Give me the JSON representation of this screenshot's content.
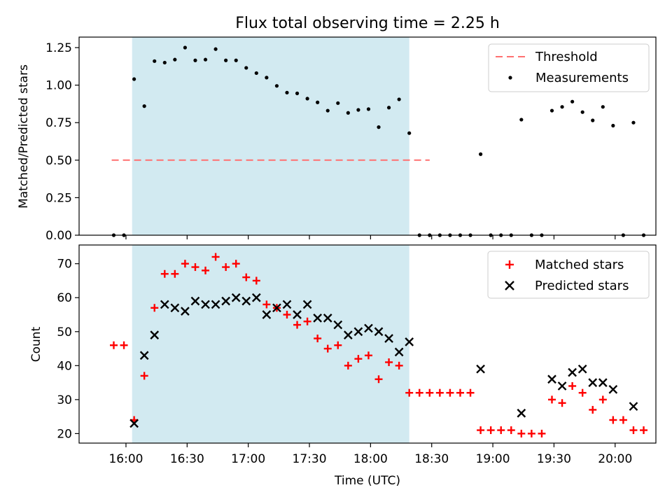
{
  "title": "Flux total observing time = 2.25 h",
  "chart_data": [
    {
      "type": "scatter",
      "panel": "top",
      "ylabel": "Matched/Predicted stars",
      "ylim": [
        0,
        1.32
      ],
      "yticks": [
        0,
        0.25,
        0.5,
        0.75,
        1.0,
        1.25
      ],
      "ytick_labels": [
        "0.00",
        "0.25",
        "0.50",
        "0.75",
        "1.00",
        "1.25"
      ],
      "highlight_span_minutes": [
        963,
        1099
      ],
      "threshold": {
        "label": "Threshold",
        "value": 0.5,
        "x_range_minutes": [
          953,
          1109
        ]
      },
      "legend": [
        "Threshold",
        "Measurements"
      ],
      "legend_position": "top-right",
      "series": [
        {
          "name": "Measurements",
          "points": [
            [
              954,
              0
            ],
            [
              959,
              0
            ],
            [
              964,
              1.04
            ],
            [
              969,
              0.86
            ],
            [
              974,
              1.16
            ],
            [
              979,
              1.15
            ],
            [
              984,
              1.17
            ],
            [
              989,
              1.25
            ],
            [
              994,
              1.165
            ],
            [
              999,
              1.17
            ],
            [
              1004,
              1.24
            ],
            [
              1009,
              1.165
            ],
            [
              1014,
              1.165
            ],
            [
              1019,
              1.115
            ],
            [
              1024,
              1.08
            ],
            [
              1029,
              1.05
            ],
            [
              1034,
              0.995
            ],
            [
              1039,
              0.95
            ],
            [
              1044,
              0.945
            ],
            [
              1049,
              0.91
            ],
            [
              1054,
              0.885
            ],
            [
              1059,
              0.83
            ],
            [
              1064,
              0.88
            ],
            [
              1069,
              0.815
            ],
            [
              1074,
              0.835
            ],
            [
              1079,
              0.84
            ],
            [
              1084,
              0.72
            ],
            [
              1089,
              0.85
            ],
            [
              1094,
              0.905
            ],
            [
              1099,
              0.68
            ],
            [
              1104,
              0
            ],
            [
              1109,
              0
            ],
            [
              1114,
              0
            ],
            [
              1119,
              0
            ],
            [
              1124,
              0
            ],
            [
              1129,
              0
            ],
            [
              1134,
              0.54
            ],
            [
              1139,
              0
            ],
            [
              1144,
              0
            ],
            [
              1149,
              0
            ],
            [
              1154,
              0.77
            ],
            [
              1159,
              0
            ],
            [
              1164,
              0
            ],
            [
              1169,
              0.83
            ],
            [
              1174,
              0.855
            ],
            [
              1179,
              0.89
            ],
            [
              1184,
              0.82
            ],
            [
              1189,
              0.765
            ],
            [
              1194,
              0.855
            ],
            [
              1199,
              0.73
            ],
            [
              1204,
              0
            ],
            [
              1209,
              0.75
            ],
            [
              1214,
              0
            ]
          ]
        }
      ]
    },
    {
      "type": "scatter",
      "panel": "bottom",
      "title": "",
      "xlabel": "Time (UTC)",
      "ylabel": "Count",
      "xlim_minutes": [
        937,
        1220
      ],
      "ylim": [
        17.2,
        75.5
      ],
      "xticks_minutes": [
        960,
        990,
        1020,
        1050,
        1080,
        1110,
        1140,
        1170,
        1200
      ],
      "xtick_labels": [
        "16:00",
        "16:30",
        "17:00",
        "17:30",
        "18:00",
        "18:30",
        "19:00",
        "19:30",
        "20:00"
      ],
      "yticks": [
        20,
        30,
        40,
        50,
        60,
        70
      ],
      "ytick_labels": [
        "20",
        "30",
        "40",
        "50",
        "60",
        "70"
      ],
      "highlight_span_minutes": [
        963,
        1099
      ],
      "legend": [
        "Matched stars",
        "Predicted stars"
      ],
      "legend_position": "top-right",
      "series": [
        {
          "name": "Matched stars",
          "color": "#ff0000",
          "marker": "plus",
          "points": [
            [
              954,
              46
            ],
            [
              959,
              46
            ],
            [
              964,
              24
            ],
            [
              969,
              37
            ],
            [
              974,
              57
            ],
            [
              979,
              67
            ],
            [
              984,
              67
            ],
            [
              989,
              70
            ],
            [
              994,
              69
            ],
            [
              999,
              68
            ],
            [
              1004,
              72
            ],
            [
              1009,
              69
            ],
            [
              1014,
              70
            ],
            [
              1019,
              66
            ],
            [
              1024,
              65
            ],
            [
              1029,
              58
            ],
            [
              1034,
              57
            ],
            [
              1039,
              55
            ],
            [
              1044,
              52
            ],
            [
              1049,
              53
            ],
            [
              1054,
              48
            ],
            [
              1059,
              45
            ],
            [
              1064,
              46
            ],
            [
              1069,
              40
            ],
            [
              1074,
              42
            ],
            [
              1079,
              43
            ],
            [
              1084,
              36
            ],
            [
              1089,
              41
            ],
            [
              1094,
              40
            ],
            [
              1099,
              32
            ],
            [
              1104,
              32
            ],
            [
              1109,
              32
            ],
            [
              1114,
              32
            ],
            [
              1119,
              32
            ],
            [
              1124,
              32
            ],
            [
              1129,
              32
            ],
            [
              1134,
              21
            ],
            [
              1139,
              21
            ],
            [
              1144,
              21
            ],
            [
              1149,
              21
            ],
            [
              1154,
              20
            ],
            [
              1159,
              20
            ],
            [
              1164,
              20
            ],
            [
              1169,
              30
            ],
            [
              1174,
              29
            ],
            [
              1179,
              34
            ],
            [
              1184,
              32
            ],
            [
              1189,
              27
            ],
            [
              1194,
              30
            ],
            [
              1199,
              24
            ],
            [
              1204,
              24
            ],
            [
              1209,
              21
            ],
            [
              1214,
              21
            ]
          ]
        },
        {
          "name": "Predicted stars",
          "color": "#000000",
          "marker": "x",
          "points": [
            [
              964,
              23
            ],
            [
              969,
              43
            ],
            [
              974,
              49
            ],
            [
              979,
              58
            ],
            [
              984,
              57
            ],
            [
              989,
              56
            ],
            [
              994,
              59
            ],
            [
              999,
              58
            ],
            [
              1004,
              58
            ],
            [
              1009,
              59
            ],
            [
              1014,
              60
            ],
            [
              1019,
              59
            ],
            [
              1024,
              60
            ],
            [
              1029,
              55
            ],
            [
              1034,
              57
            ],
            [
              1039,
              58
            ],
            [
              1044,
              55
            ],
            [
              1049,
              58
            ],
            [
              1054,
              54
            ],
            [
              1059,
              54
            ],
            [
              1064,
              52
            ],
            [
              1069,
              49
            ],
            [
              1074,
              50
            ],
            [
              1079,
              51
            ],
            [
              1084,
              50
            ],
            [
              1089,
              48
            ],
            [
              1094,
              44
            ],
            [
              1099,
              47
            ],
            [
              1134,
              39
            ],
            [
              1154,
              26
            ],
            [
              1169,
              36
            ],
            [
              1174,
              34
            ],
            [
              1179,
              38
            ],
            [
              1184,
              39
            ],
            [
              1189,
              35
            ],
            [
              1194,
              35
            ],
            [
              1199,
              33
            ],
            [
              1209,
              28
            ]
          ]
        }
      ]
    }
  ]
}
